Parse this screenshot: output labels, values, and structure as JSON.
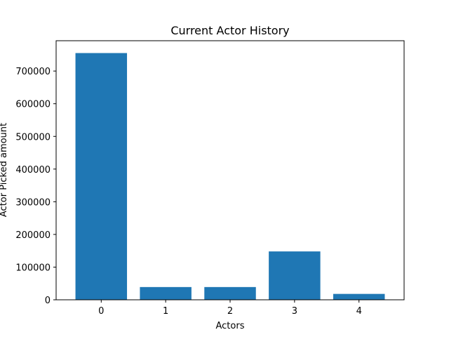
{
  "chart_data": {
    "type": "bar",
    "title": "Current Actor History",
    "xlabel": "Actors",
    "ylabel": "Actor Picked amount",
    "categories": [
      "0",
      "1",
      "2",
      "3",
      "4"
    ],
    "values": [
      755000,
      39000,
      39000,
      148000,
      18000
    ],
    "yticks": [
      0,
      100000,
      200000,
      300000,
      400000,
      500000,
      600000,
      700000
    ],
    "ytick_labels": [
      "0",
      "100000",
      "200000",
      "300000",
      "400000",
      "500000",
      "600000",
      "700000"
    ],
    "ylim": [
      0,
      792750
    ],
    "grid": false,
    "bar_color": "#1f77b4"
  }
}
